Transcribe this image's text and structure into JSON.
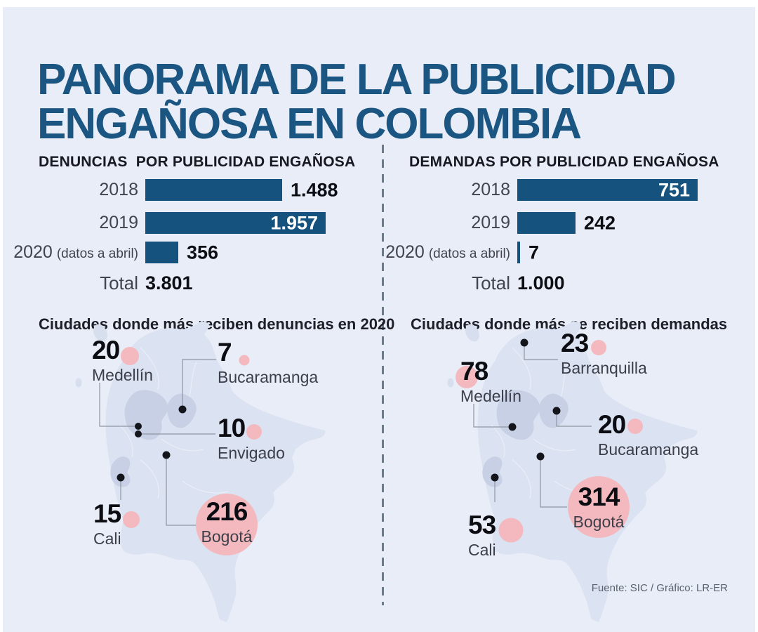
{
  "page": {
    "title_line1": "PANORAMA DE LA PUBLICIDAD",
    "title_line2": "ENGAÑOSA EN COLOMBIA",
    "footer": "Fuente: SIC / Gráfico: LR-ER"
  },
  "colors": {
    "background": "#E8EDF7",
    "bar_blue": "#15527D",
    "title_blue": "#1B5582",
    "bubble_pink": "#F3B9BE",
    "map_land": "#DBE2F1",
    "map_region_dark": "#C7D0E4"
  },
  "chart_data": [
    {
      "type": "bar",
      "title": "DENUNCIAS  POR PUBLICIDAD ENGAÑOSA",
      "orientation": "horizontal",
      "categories": [
        "2018",
        "2019",
        "2020 (datos a abril)"
      ],
      "values": [
        1488,
        1957,
        356
      ],
      "rows": [
        {
          "year": "2018",
          "note": "",
          "value_label": "1.488",
          "value_inside": false
        },
        {
          "year": "2019",
          "note": "",
          "value_label": "1.957",
          "value_inside": true
        },
        {
          "year": "2020",
          "note": "(datos a abril)",
          "value_label": "356",
          "value_inside": false
        }
      ],
      "total_label": "Total",
      "total_value": "3.801"
    },
    {
      "type": "bar",
      "title": "DEMANDAS POR PUBLICIDAD ENGAÑOSA",
      "orientation": "horizontal",
      "categories": [
        "2018",
        "2019",
        "2020 (datos a abril)"
      ],
      "values": [
        751,
        242,
        7
      ],
      "rows": [
        {
          "year": "2018",
          "note": "",
          "value_label": "751",
          "value_inside": true
        },
        {
          "year": "2019",
          "note": "",
          "value_label": "242",
          "value_inside": false
        },
        {
          "year": "2020",
          "note": "(datos a abril)",
          "value_label": "7",
          "value_inside": false
        }
      ],
      "total_label": "Total",
      "total_value": "1.000"
    },
    {
      "type": "map-bubbles",
      "title": "Ciudades donde más reciben denuncias en 2020",
      "region": "Colombia",
      "cities": [
        {
          "name": "Medellín",
          "value": 20,
          "value_label": "20"
        },
        {
          "name": "Bucaramanga",
          "value": 7,
          "value_label": "7"
        },
        {
          "name": "Envigado",
          "value": 10,
          "value_label": "10"
        },
        {
          "name": "Cali",
          "value": 15,
          "value_label": "15"
        },
        {
          "name": "Bogotá",
          "value": 216,
          "value_label": "216"
        }
      ]
    },
    {
      "type": "map-bubbles",
      "title": "Ciudades donde más se reciben demandas",
      "region": "Colombia",
      "cities": [
        {
          "name": "Barranquilla",
          "value": 23,
          "value_label": "23"
        },
        {
          "name": "Medellín",
          "value": 78,
          "value_label": "78"
        },
        {
          "name": "Bucaramanga",
          "value": 20,
          "value_label": "20"
        },
        {
          "name": "Cali",
          "value": 53,
          "value_label": "53"
        },
        {
          "name": "Bogotá",
          "value": 314,
          "value_label": "314"
        }
      ]
    }
  ]
}
